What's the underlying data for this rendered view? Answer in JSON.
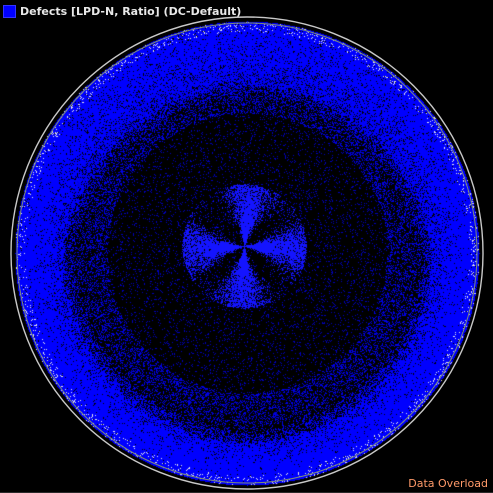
{
  "legend": {
    "label": "Defects [LPD-N, Ratio] (DC-Default)",
    "swatch_color": "#0000ff"
  },
  "map": {
    "background_color": "#000000",
    "defect_color": "#0000ff",
    "defect_highlight_color": "#1a1aff",
    "outline_color": "#c8c8c8",
    "outline_inner_color": "#7a8a7a",
    "edge_speckle_color": "#ffffff"
  },
  "status": {
    "text": "Data Overload",
    "color": "#ff9a6a"
  }
}
